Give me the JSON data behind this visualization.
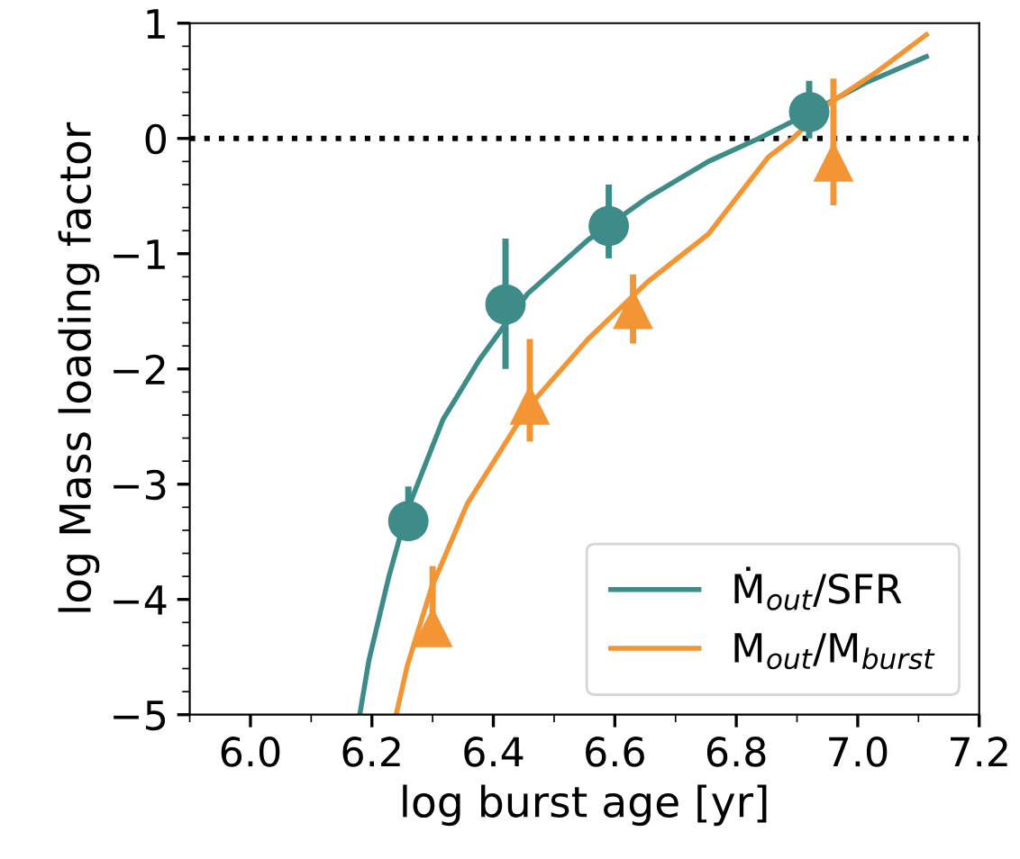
{
  "chart_data": {
    "type": "scatter",
    "xlabel": "log burst age [yr]",
    "ylabel": "log Mass loading factor",
    "xlim": [
      5.9,
      7.2
    ],
    "ylim": [
      -5,
      1
    ],
    "xticks": [
      {
        "value": 6,
        "label": "6.0"
      },
      6.2,
      6.4,
      6.6,
      6.8,
      {
        "value": 7,
        "label": "7.0"
      },
      7.2
    ],
    "yticks": [
      -5,
      -4,
      -3,
      -2,
      -1,
      0,
      1
    ],
    "grid": false,
    "legend": "bottom right",
    "ref_lines": [
      {
        "axis": "y",
        "value": 0,
        "color": "#000000",
        "line_style": "dotted"
      }
    ],
    "series": [
      {
        "type": "line",
        "name": "Ṁ$_{out}$/SFR",
        "color": "#3d8c89",
        "marker": "none",
        "line_style": "solid",
        "x": [
          6.18,
          6.195,
          6.228,
          6.258,
          6.317,
          6.377,
          6.456,
          6.556,
          6.655,
          6.754,
          6.837,
          6.92,
          7.012,
          7.113
        ],
        "values": [
          -5,
          -4.53,
          -3.8,
          -3.23,
          -2.44,
          -1.92,
          -1.35,
          -0.88,
          -0.51,
          -0.2,
          0.0,
          0.22,
          0.48,
          0.71
        ]
      },
      {
        "type": "line",
        "name": "M$_{out}$/M$_{burst}$",
        "color": "#f39534",
        "marker": "none",
        "line_style": "solid",
        "x": [
          6.24,
          6.258,
          6.298,
          6.357,
          6.456,
          6.556,
          6.655,
          6.754,
          6.853,
          6.893,
          6.952,
          7.032,
          7.113
        ],
        "values": [
          -5,
          -4.58,
          -3.9,
          -3.17,
          -2.34,
          -1.74,
          -1.24,
          -0.83,
          -0.16,
          0.0,
          0.3,
          0.58,
          0.9
        ]
      },
      {
        "color": "#3d8c89",
        "marker": "circle",
        "x": [
          6.26,
          6.42,
          6.59,
          6.92
        ],
        "values": [
          -3.32,
          -1.44,
          -0.76,
          0.23
        ],
        "errors": [
          [
            -3.32,
            -3.02
          ],
          [
            -2.0,
            -0.87
          ],
          [
            -1.04,
            -0.4
          ],
          [
            0.0,
            0.5
          ]
        ]
      },
      {
        "color": "#f39534",
        "marker": "triangle",
        "x": [
          6.3,
          6.46,
          6.63,
          6.96
        ],
        "values": [
          -4.24,
          -2.31,
          -1.48,
          -0.2
        ],
        "errors": [
          [
            -4.24,
            -3.71
          ],
          [
            -2.63,
            -1.74
          ],
          [
            -1.78,
            -1.18
          ],
          [
            -0.58,
            0.52
          ]
        ]
      }
    ]
  }
}
